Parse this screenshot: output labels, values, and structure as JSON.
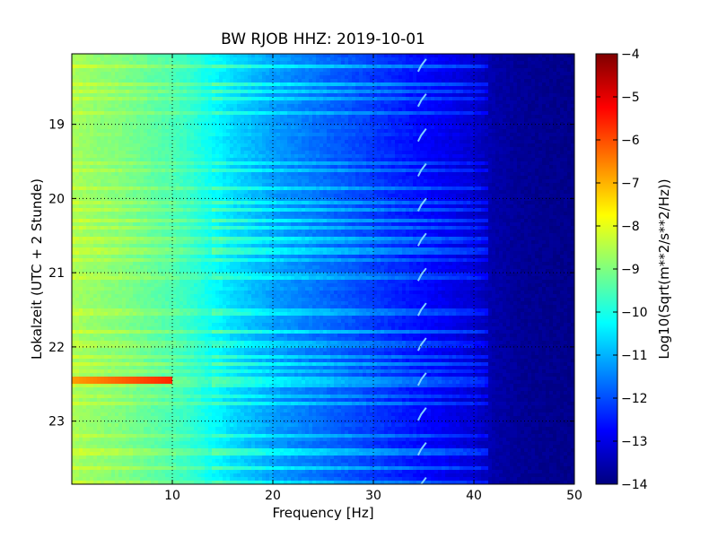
{
  "chart_data": {
    "type": "heatmap",
    "title": "BW RJOB HHZ: 2019-10-01",
    "xlabel": "Frequency [Hz]",
    "ylabel": "Lokalzeit (UTC + 2 Stunde)",
    "xlim": [
      0,
      50
    ],
    "ylim": [
      18.05,
      23.85
    ],
    "x_ticks": [
      10,
      20,
      30,
      40,
      50
    ],
    "x_tick_labels": [
      "10",
      "20",
      "30",
      "40",
      "50"
    ],
    "y_ticks": [
      19,
      20,
      21,
      22,
      23
    ],
    "y_tick_labels": [
      "19",
      "20",
      "21",
      "22",
      "23"
    ],
    "y_inverted": true,
    "grid": true,
    "colorbar": {
      "label": "Log10(Sqrt(m**2/s**2/Hz))",
      "range": [
        -14,
        -4
      ],
      "ticks": [
        -4,
        -5,
        -6,
        -7,
        -8,
        -9,
        -10,
        -11,
        -12,
        -13,
        -14
      ],
      "tick_labels": [
        "−4",
        "−5",
        "−6",
        "−7",
        "−8",
        "−9",
        "−10",
        "−11",
        "−12",
        "−13",
        "−14"
      ],
      "colormap": "jet"
    },
    "spectral_profile": {
      "frequency_hz": [
        0,
        2,
        5,
        8,
        10,
        12,
        14,
        16,
        18,
        20,
        22,
        25,
        28,
        30,
        33,
        36,
        38,
        40,
        41,
        42,
        45,
        50
      ],
      "log10_amplitude": [
        -8.6,
        -8.8,
        -9.0,
        -9.3,
        -9.5,
        -9.8,
        -10.2,
        -10.6,
        -10.9,
        -11.2,
        -11.4,
        -11.7,
        -12.0,
        -12.2,
        -12.5,
        -12.8,
        -13.0,
        -13.2,
        -13.4,
        -13.6,
        -13.8,
        -13.9
      ]
    },
    "features": [
      {
        "type": "line",
        "frequency_hz": [
          34.5,
          35.0
        ],
        "time": "recurring",
        "note": "tonal interference"
      },
      {
        "type": "event",
        "time": 22.45,
        "frequency_hz": [
          0,
          10
        ],
        "peak_log10_amplitude": -6.8
      }
    ]
  }
}
